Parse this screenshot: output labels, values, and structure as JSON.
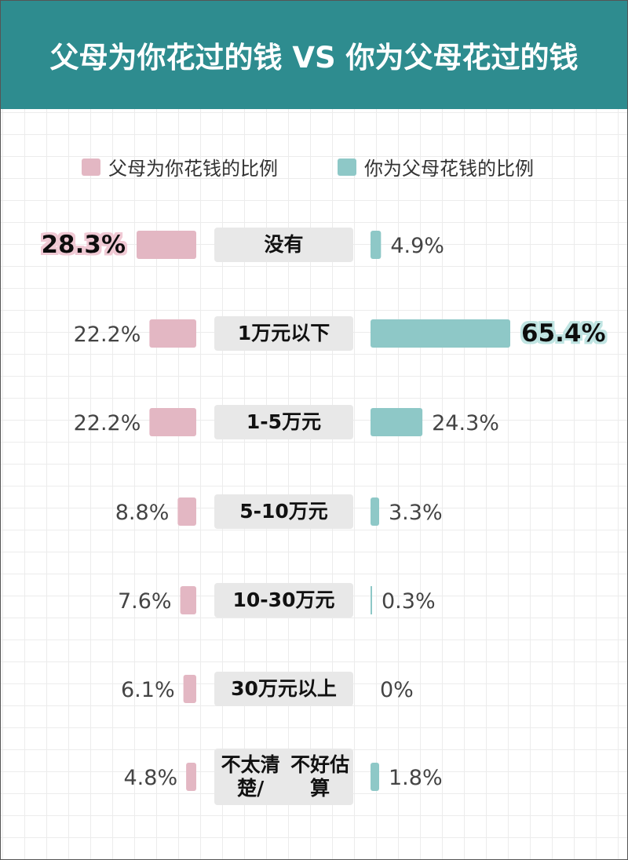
{
  "title": "父母为你花过的钱 VS 你为父母花过的钱",
  "colors": {
    "header_bg": "#2e8c8f",
    "parents_bar": "#e3b7c3",
    "child_bar": "#8ec8c7",
    "highlight_glow_parents": "#f0c9d4",
    "highlight_glow_child": "#bfe4e2",
    "category_box": "#e8e8e8"
  },
  "legend": {
    "parents": "父母为你花钱的比例",
    "child": "你为父母花钱的比例"
  },
  "chart_data": {
    "type": "bar",
    "title": "父母为你花过的钱 VS 你为父母花过的钱",
    "categories": [
      "没有",
      "1万元以下",
      "1-5万元",
      "5-10万元",
      "10-30万元",
      "30万元以上",
      "不太清楚/不好估算"
    ],
    "category_lines": [
      [
        "没有"
      ],
      [
        "1万元以下"
      ],
      [
        "1-5万元"
      ],
      [
        "5-10万元"
      ],
      [
        "10-30万元"
      ],
      [
        "30万元以上"
      ],
      [
        "不太清楚/",
        "不好估算"
      ]
    ],
    "series": [
      {
        "name": "父母为你花钱的比例",
        "values": [
          28.3,
          22.2,
          22.2,
          8.8,
          7.6,
          6.1,
          4.8
        ],
        "labels": [
          "28.3%",
          "22.2%",
          "22.2%",
          "8.8%",
          "7.6%",
          "6.1%",
          "4.8%"
        ],
        "highlight_index": 0
      },
      {
        "name": "你为父母花钱的比例",
        "values": [
          4.9,
          65.4,
          24.3,
          3.3,
          0.3,
          0,
          1.8
        ],
        "labels": [
          "4.9%",
          "65.4%",
          "24.3%",
          "3.3%",
          "0.3%",
          "0%",
          "1.8%"
        ],
        "highlight_index": 1
      }
    ],
    "orientation": "horizontal-butterfly",
    "grid": true,
    "legend_position": "top"
  }
}
